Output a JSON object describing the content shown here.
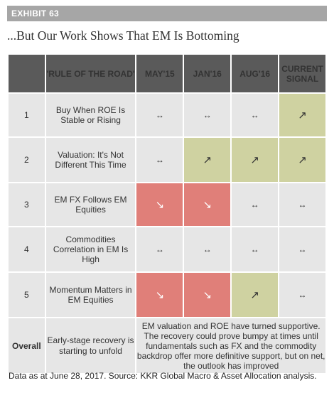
{
  "exhibit_label": "EXHIBIT 63",
  "title": "...But Our Work Shows That EM Is Bottoming",
  "table": {
    "headers": {
      "rule": "'RULE OF THE ROAD'",
      "c1": "MAY'15",
      "c2": "JAN'16",
      "c3": "AUG'16",
      "c4": "CURRENT SIGNAL"
    },
    "rows": [
      {
        "num": "1",
        "rule": "Buy When ROE Is Stable or Rising",
        "c1": "↔",
        "c2": "↔",
        "c3": "↔",
        "c4": "↗"
      },
      {
        "num": "2",
        "rule": "Valuation: It's Not Different This Time",
        "c1": "↔",
        "c2": "↗",
        "c3": "↗",
        "c4": "↗"
      },
      {
        "num": "3",
        "rule": "EM FX Follows EM Equities",
        "c1": "↘",
        "c2": "↘",
        "c3": "↔",
        "c4": "↔"
      },
      {
        "num": "4",
        "rule": "Commodities Correlation in EM Is High",
        "c1": "↔",
        "c2": "↔",
        "c3": "↔",
        "c4": "↔"
      },
      {
        "num": "5",
        "rule": "Momentum Matters in EM Equities",
        "c1": "↘",
        "c2": "↘",
        "c3": "↗",
        "c4": "↔"
      }
    ],
    "overall": {
      "label": "Overall",
      "desc": "Early-stage recovery is starting to unfold",
      "text": "EM valuation and ROE have turned supportive. The recovery could prove bumpy at times until fundamentals such as FX and the commodity backdrop offer more definitive support, but on net, the outlook has improved"
    }
  },
  "colors": {
    "header_bg": "#5a5a5a",
    "cell_bg": "#e6e6e6",
    "positive": "#cfd2a1",
    "negative": "#e07f79"
  },
  "footnote": "Data as at June 28, 2017. Source: KKR Global Macro & Asset Allocation analysis."
}
